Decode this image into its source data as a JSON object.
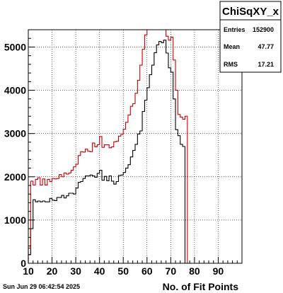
{
  "chart_data": {
    "type": "line",
    "title": "",
    "xlabel": "No. of Fit Points",
    "ylabel": "",
    "xlim": [
      10,
      100
    ],
    "ylim": [
      0,
      5400
    ],
    "grid": true,
    "x_ticks": [
      10,
      20,
      30,
      40,
      50,
      60,
      70,
      80,
      90
    ],
    "y_ticks": [
      0,
      1000,
      2000,
      3000,
      4000,
      5000
    ],
    "bin_edges": [
      10,
      11,
      12,
      13,
      14,
      15,
      16,
      17,
      18,
      19,
      20,
      21,
      22,
      23,
      24,
      25,
      26,
      27,
      28,
      29,
      30,
      31,
      32,
      33,
      34,
      35,
      36,
      37,
      38,
      39,
      40,
      41,
      42,
      43,
      44,
      45,
      46,
      47,
      48,
      49,
      50,
      51,
      52,
      53,
      54,
      55,
      56,
      57,
      58,
      59,
      60,
      61,
      62,
      63,
      64,
      65,
      66,
      67,
      68,
      69,
      70,
      71,
      72,
      73,
      74,
      75,
      76,
      77,
      78,
      79,
      80,
      81,
      82,
      83,
      84,
      85,
      86,
      87,
      88,
      89,
      90,
      91,
      92,
      93,
      94,
      95,
      96,
      97,
      98,
      99,
      100
    ],
    "series": [
      {
        "color": "#000000",
        "values": [
          200,
          800,
          1470,
          1420,
          1440,
          1420,
          1440,
          1420,
          1420,
          1500,
          1460,
          1450,
          1520,
          1520,
          1570,
          1510,
          1560,
          1620,
          1620,
          1600,
          1740,
          1870,
          1890,
          1960,
          2020,
          2020,
          2040,
          2020,
          1990,
          2080,
          2150,
          1920,
          2010,
          1910,
          2020,
          1900,
          1830,
          1890,
          2030,
          2040,
          2100,
          2200,
          2280,
          2460,
          2610,
          2750,
          2990,
          3060,
          3510,
          3770,
          4060,
          4360,
          4580,
          4870,
          5050,
          5130,
          5100,
          5160,
          4860,
          4520,
          4420,
          3800,
          3090,
          2950,
          2750,
          2700,
          0,
          0,
          0,
          0,
          0,
          0,
          0,
          0,
          0,
          0,
          0,
          0,
          0,
          0,
          0,
          0,
          0,
          0,
          0,
          0,
          0,
          0,
          0,
          0
        ]
      },
      {
        "color": "#cc0000",
        "values": [
          350,
          1900,
          1810,
          1940,
          1980,
          1810,
          1950,
          1810,
          1940,
          1890,
          1960,
          1950,
          1960,
          2050,
          2000,
          2090,
          2060,
          2090,
          2150,
          2230,
          2290,
          2490,
          2580,
          2570,
          2640,
          2590,
          2580,
          2780,
          2690,
          2740,
          2930,
          2680,
          2740,
          2740,
          2670,
          2690,
          2810,
          2820,
          2940,
          2980,
          3100,
          3260,
          3430,
          3630,
          3690,
          3930,
          4230,
          4580,
          4950,
          5280,
          5440,
          5400,
          5400,
          5500,
          5500,
          5500,
          5500,
          5400,
          5250,
          5160,
          5230,
          4700,
          4000,
          3440,
          3380,
          3330,
          3400,
          0,
          0,
          0,
          0,
          0,
          0,
          0,
          0,
          0,
          0,
          0,
          0,
          0,
          0,
          0,
          0,
          0,
          0,
          0,
          0,
          0,
          0,
          0
        ]
      }
    ]
  },
  "stats": {
    "title": "ChiSqXY_x",
    "rows": [
      {
        "label": "Entries",
        "value": "152900"
      },
      {
        "label": "Mean",
        "value": "47.77"
      },
      {
        "label": "RMS",
        "value": "17.21"
      }
    ]
  },
  "timestamp": "Sun Jun 29 06:42:54 2025"
}
